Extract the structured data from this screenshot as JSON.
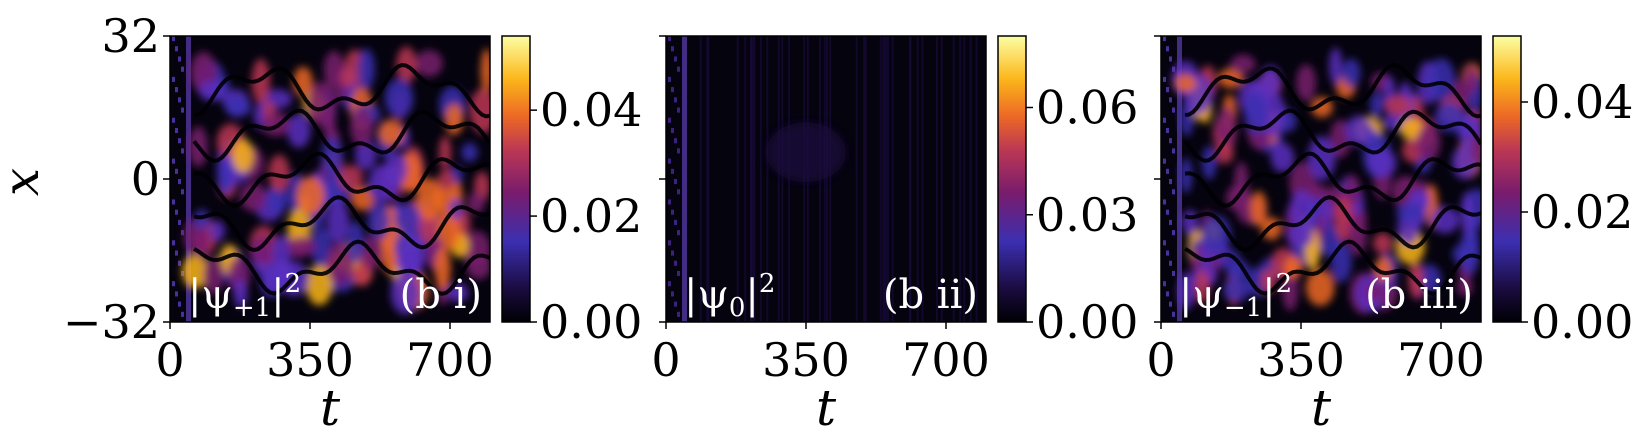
{
  "figure": {
    "shared_ylabel": "x",
    "shared_xlabel": "t"
  },
  "chart_data": [
    {
      "type": "heatmap",
      "panel_label": "(b i)",
      "field_label": "|ψ+1|²",
      "field_base": "|ψ",
      "field_sub": "+1",
      "field_sup": "2",
      "xlabel": "t",
      "ylabel": "x",
      "xlim": [
        0,
        800
      ],
      "ylim": [
        -32,
        32
      ],
      "xticks": [
        0,
        350,
        700
      ],
      "xtick_labels": [
        "0",
        "350",
        "700"
      ],
      "yticks": [
        -32,
        0,
        32
      ],
      "ytick_labels": [
        "−32",
        "0",
        "32"
      ],
      "colorbar": {
        "min": 0,
        "max": 0.054,
        "ticks": [
          0,
          0.02,
          0.04
        ],
        "tick_labels": [
          "0.00",
          "0.02",
          "0.04"
        ]
      },
      "density_note": "",
      "intensity_level": 0.6
    },
    {
      "type": "heatmap",
      "panel_label": "(b ii)",
      "field_label": "|ψ0|²",
      "field_base": "|ψ",
      "field_sub": "0",
      "field_sup": "2",
      "xlabel": "t",
      "ylabel": "",
      "xlim": [
        0,
        800
      ],
      "ylim": [
        -32,
        32
      ],
      "xticks": [
        0,
        350,
        700
      ],
      "xtick_labels": [
        "0",
        "350",
        "700"
      ],
      "yticks": [],
      "ytick_labels": [],
      "colorbar": {
        "min": 0,
        "max": 0.08,
        "ticks": [
          0,
          0.03,
          0.06
        ],
        "tick_labels": [
          "0.00",
          "0.03",
          "0.06"
        ]
      },
      "intensity_level": 0.05
    },
    {
      "type": "heatmap",
      "panel_label": "(b iii)",
      "field_label": "|ψ−1|²",
      "field_base": "|ψ",
      "field_sub": "−1",
      "field_sup": "2",
      "xlabel": "t",
      "ylabel": "",
      "xlim": [
        0,
        800
      ],
      "ylim": [
        -32,
        32
      ],
      "xticks": [
        0,
        350,
        700
      ],
      "xtick_labels": [
        "0",
        "350",
        "700"
      ],
      "yticks": [],
      "ytick_labels": [],
      "colorbar": {
        "min": 0,
        "max": 0.052,
        "ticks": [
          0,
          0.02,
          0.04
        ],
        "tick_labels": [
          "0.00",
          "0.02",
          "0.04"
        ]
      },
      "intensity_level": 0.55
    }
  ],
  "colormap": {
    "name": "inferno-like",
    "stops": [
      "#000004",
      "#1b0c41",
      "#4a0c6b",
      "#3b2fb0",
      "#781c6d",
      "#bb3754",
      "#ed6925",
      "#fbb61a",
      "#fcffa4"
    ]
  }
}
